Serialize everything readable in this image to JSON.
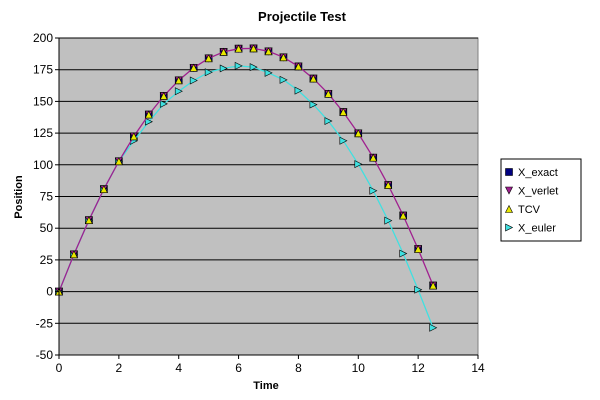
{
  "chart_data": {
    "type": "line",
    "title": "Projectile Test",
    "xlabel": "Time",
    "ylabel": "Position",
    "xlim": [
      0,
      14
    ],
    "ylim": [
      -50,
      200
    ],
    "xticks": [
      0,
      2,
      4,
      6,
      8,
      10,
      12,
      14
    ],
    "yticks": [
      -50,
      -25,
      0,
      25,
      50,
      75,
      100,
      125,
      150,
      175,
      200
    ],
    "grid": "horizontal",
    "legend_position": "right",
    "plot_background": "#c0c0c0",
    "x": [
      0,
      0.5,
      1,
      1.5,
      2,
      2.5,
      3,
      3.5,
      4,
      4.5,
      5,
      5.5,
      6,
      6.5,
      7,
      7.5,
      8,
      8.5,
      9,
      9.5,
      10,
      10.5,
      11,
      11.5,
      12,
      12.5
    ],
    "series": [
      {
        "name": "X_exact",
        "marker": "square",
        "color": "#000080",
        "line": false,
        "values": [
          0,
          29.4,
          56.3,
          80.8,
          102.8,
          122.4,
          139.6,
          154.3,
          166.6,
          176.5,
          184,
          189,
          191.6,
          191.8,
          189.5,
          184.8,
          177.6,
          168,
          156,
          141.6,
          124.8,
          105.6,
          84,
          60,
          33.6,
          4.8
        ]
      },
      {
        "name": "X_verlet",
        "marker": "triangle-down",
        "color": "#a0208f",
        "line": true,
        "values": [
          0,
          29.4,
          56.3,
          80.8,
          102.8,
          122.4,
          139.6,
          154.3,
          166.6,
          176.5,
          184,
          189,
          191.6,
          191.8,
          189.5,
          184.8,
          177.6,
          168,
          156,
          141.6,
          124.8,
          105.6,
          84,
          60,
          33.6,
          4.8
        ]
      },
      {
        "name": "TCV",
        "marker": "triangle-up",
        "color": "#e8e800",
        "line": false,
        "values": [
          0,
          29.4,
          56.3,
          80.8,
          102.8,
          122.4,
          139.6,
          154.3,
          166.6,
          176.5,
          184,
          189,
          191.6,
          191.8,
          189.5,
          184.8,
          177.6,
          168,
          156,
          141.6,
          124.8,
          105.6,
          84,
          60,
          33.6,
          4.8
        ]
      },
      {
        "name": "X_euler",
        "marker": "triangle-right",
        "color": "#40e0e0",
        "line": true,
        "values": [
          0,
          29.4,
          56.3,
          80.8,
          102.8,
          118.9,
          134,
          148,
          158,
          166.5,
          173,
          176,
          178,
          177,
          172.5,
          167,
          158.5,
          147.5,
          134.5,
          119,
          100.5,
          79.5,
          56,
          30,
          1.5,
          -28.5
        ]
      }
    ]
  }
}
